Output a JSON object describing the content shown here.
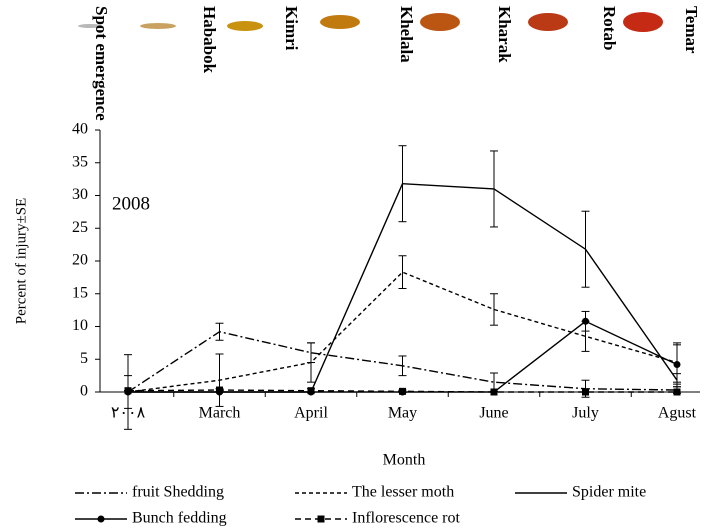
{
  "header": {
    "stages": [
      {
        "label": "Spot emergence",
        "color": "#b8b8b8"
      },
      {
        "label": "Hababok",
        "color": "#c9a262"
      },
      {
        "label": "Kimri",
        "color": "#c8920f"
      },
      {
        "label": "Khelala",
        "color": "#c07a10"
      },
      {
        "label": "Kharak",
        "color": "#bb5512"
      },
      {
        "label": "Rotab",
        "color": "#b93a14"
      },
      {
        "label": "Temar",
        "color": "#c42a14"
      }
    ]
  },
  "chart_data": {
    "type": "line",
    "annotation": "2008",
    "x_label": "Month",
    "y_label": "Percent of injury±SE",
    "categories": [
      "٢٠٠٨",
      "March",
      "April",
      "May",
      "June",
      "July",
      "Agust"
    ],
    "ylim": [
      0,
      40
    ],
    "yticks": [
      0,
      5,
      10,
      15,
      20,
      25,
      30,
      35,
      40
    ],
    "series": [
      {
        "name": "fruit Shedding",
        "color": "#000000",
        "dash": "9,3,2,3",
        "marker": "none",
        "values": [
          0,
          9.2,
          6,
          4,
          1.5,
          0.5,
          0.3
        ],
        "errors": [
          2.5,
          1.3,
          1.5,
          1.5,
          1.4,
          1.3,
          0.5
        ]
      },
      {
        "name": "The lesser moth",
        "color": "#000000",
        "dash": "4,3",
        "marker": "none",
        "values": [
          0,
          1.8,
          4.5,
          18.3,
          12.6,
          8.5,
          4.5
        ],
        "errors": [
          5.7,
          4,
          3,
          2.5,
          2.4,
          2.3,
          3
        ]
      },
      {
        "name": "Spider mite",
        "color": "#000000",
        "dash": "none",
        "marker": "none",
        "values": [
          0,
          0,
          0,
          31.8,
          31,
          21.8,
          1.8
        ],
        "errors": [
          0,
          0,
          0,
          5.8,
          5.8,
          5.8,
          1
        ]
      },
      {
        "name": "Bunch fedding",
        "color": "#000000",
        "dash": "none",
        "marker": "circle",
        "values": [
          0,
          0,
          0,
          0,
          0,
          10.8,
          4.2
        ],
        "errors": [
          0,
          0,
          0,
          0,
          0,
          1.5,
          3
        ]
      },
      {
        "name": "Inflorescence rot",
        "color": "#000000",
        "dash": "6,4",
        "marker": "square",
        "values": [
          0.2,
          0.3,
          0.2,
          0.1,
          0,
          0,
          0
        ],
        "errors": [
          0,
          0.2,
          0.3,
          0.2,
          0,
          0,
          0
        ]
      }
    ]
  }
}
